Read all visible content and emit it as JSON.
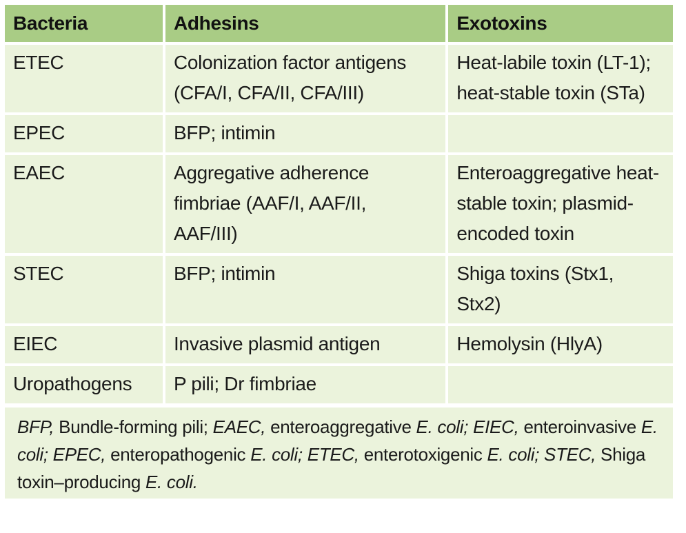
{
  "table": {
    "headers": [
      "Bacteria",
      "Adhesins",
      "Exotoxins"
    ],
    "rows": [
      {
        "bacteria": "ETEC",
        "adhesins": [
          "Colonization factor antigens",
          "(CFA/I, CFA/II, CFA/III)"
        ],
        "exotoxins": [
          "Heat-labile toxin (LT-1);",
          "heat-stable toxin (STa)"
        ]
      },
      {
        "bacteria": "EPEC",
        "adhesins": [
          "BFP; intimin"
        ],
        "exotoxins": []
      },
      {
        "bacteria": "EAEC",
        "adhesins": [
          "Aggregative adherence",
          "fimbriae (AAF/I, AAF/II,",
          "AAF/III)"
        ],
        "exotoxins": [
          "Enteroaggregative heat-",
          "stable toxin; plasmid-",
          "encoded toxin"
        ]
      },
      {
        "bacteria": "STEC",
        "adhesins": [
          "BFP; intimin"
        ],
        "exotoxins": [
          "Shiga toxins (Stx1,",
          "Stx2)"
        ]
      },
      {
        "bacteria": "EIEC",
        "adhesins": [
          "Invasive plasmid antigen"
        ],
        "exotoxins": [
          "Hemolysin (HlyA)"
        ]
      },
      {
        "bacteria": "Uropathogens",
        "adhesins": [
          "P pili; Dr fimbriae"
        ],
        "exotoxins": []
      }
    ]
  },
  "footnote": {
    "entries": [
      {
        "abbr": "BFP,",
        "text": " Bundle-forming pili; "
      },
      {
        "abbr": "EAEC,",
        "text": " enteroaggregative "
      },
      {
        "abbr": "E. coli; EIEC,",
        "text": " enteroinvasive "
      },
      {
        "abbr": "E. coli; EPEC,",
        "text": " enteropathogenic "
      },
      {
        "abbr": "E. coli; ETEC,",
        "text": " enterotoxigenic "
      },
      {
        "abbr": "E. coli; STEC,",
        "text": " Shiga toxin–producing "
      },
      {
        "abbr": "E. coli.",
        "text": ""
      }
    ]
  },
  "colors": {
    "header_bg": "#a9cc85",
    "cell_bg": "#ebf3dc",
    "gap": "#ffffff"
  }
}
